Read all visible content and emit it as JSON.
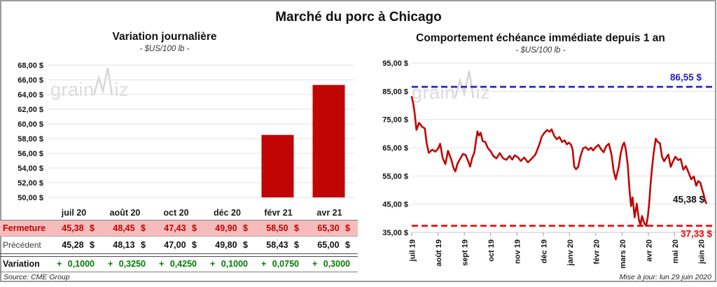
{
  "page_title": "Marché du porc à Chicago",
  "watermark": {
    "pre": "grain",
    "post": "iz"
  },
  "footer": {
    "source": "Source: CME Group",
    "updated": "Mise à jour: lun 29 juin 2020"
  },
  "colors": {
    "bar": "#c10505",
    "line": "#c10505",
    "high_dash": "#1e1ecb",
    "low_dash": "#fe0101",
    "grid": "#e2e2e2",
    "close_row_bg": "#f6bcbc",
    "close_text": "#c00000",
    "variation_green": "#007d00"
  },
  "left_chart": {
    "title": "Variation journalière",
    "subtitle": "- $US/100 lb -",
    "y_tick_labels": [
      "68,00 $",
      "66,00 $",
      "64,00 $",
      "62,00 $",
      "60,00 $",
      "58,00 $",
      "56,00 $",
      "54,00 $",
      "52,00 $",
      "50,00 $"
    ]
  },
  "table": {
    "columns": [
      "juil 20",
      "août 20",
      "oct 20",
      "déc 20",
      "févr 21",
      "avr 21"
    ],
    "rows": [
      {
        "label": "Fermeture",
        "style": "close",
        "values": [
          "45,38 $",
          "48,45 $",
          "47,43 $",
          "49,90 $",
          "58,50 $",
          "65,30 $"
        ]
      },
      {
        "label": "Précédent",
        "style": "previous",
        "values": [
          "45,28 $",
          "48,13 $",
          "47,00 $",
          "49,80 $",
          "58,43 $",
          "65,00 $"
        ]
      },
      {
        "label": "Variation",
        "style": "variation",
        "values": [
          "+ 0,1000",
          "+ 0,3250",
          "+ 0,4250",
          "+ 0,1000",
          "+ 0,0750",
          "+ 0,3000"
        ]
      }
    ]
  },
  "right_chart": {
    "title": "Comportement échéance immédiate depuis 1 an",
    "subtitle": "- $US/100 lb -",
    "y_tick_labels": [
      "95,00 $",
      "85,00 $",
      "75,00 $",
      "65,00 $",
      "55,00 $",
      "45,00 $",
      "35,00 $"
    ],
    "x_tick_labels": [
      "juil 19",
      "août 19",
      "sept 19",
      "oct 19",
      "nov 19",
      "déc 19",
      "janv 20",
      "févr 20",
      "mars 20",
      "avr 20",
      "mai 20",
      "juin 20"
    ],
    "high_label": "86,55 $",
    "low_label": "37,33 $",
    "last_label": "45,38 $"
  },
  "chart_data": [
    {
      "type": "bar",
      "title": "Variation journalière",
      "ylabel": "$US/100 lb",
      "categories": [
        "juil 20",
        "août 20",
        "oct 20",
        "déc 20",
        "févr 21",
        "avr 21"
      ],
      "values": [
        45.38,
        48.45,
        47.43,
        49.9,
        58.5,
        65.3
      ],
      "previous": [
        45.28,
        48.13,
        47.0,
        49.8,
        58.43,
        65.0
      ],
      "variation": [
        0.1,
        0.325,
        0.425,
        0.1,
        0.075,
        0.3
      ],
      "ylim": [
        50,
        68
      ],
      "ytick_step": 2,
      "grid": true,
      "note": "bars whose value is below the 50 $ axis minimum are not visible"
    },
    {
      "type": "line",
      "title": "Comportement échéance immédiate depuis 1 an",
      "ylabel": "$US/100 lb",
      "x_unit": "months elapsed since juil 2019 tick",
      "ylim": [
        35,
        95
      ],
      "ytick_step": 10,
      "grid": true,
      "high_reference": 86.55,
      "low_reference": 37.33,
      "last_value": 45.38,
      "points": [
        [
          0.0,
          83.0
        ],
        [
          0.05,
          81.0
        ],
        [
          0.1,
          78.0
        ],
        [
          0.18,
          71.3
        ],
        [
          0.28,
          73.8
        ],
        [
          0.4,
          72.4
        ],
        [
          0.5,
          71.8
        ],
        [
          0.57,
          66.5
        ],
        [
          0.65,
          63.2
        ],
        [
          0.78,
          64.3
        ],
        [
          0.9,
          63.6
        ],
        [
          1.0,
          64.6
        ],
        [
          1.08,
          66.4
        ],
        [
          1.18,
          61.3
        ],
        [
          1.28,
          59.2
        ],
        [
          1.38,
          63.9
        ],
        [
          1.5,
          60.9
        ],
        [
          1.6,
          57.6
        ],
        [
          1.66,
          56.6
        ],
        [
          1.74,
          59.3
        ],
        [
          1.85,
          61.2
        ],
        [
          1.95,
          62.8
        ],
        [
          2.05,
          62.4
        ],
        [
          2.15,
          60.2
        ],
        [
          2.22,
          58.3
        ],
        [
          2.3,
          61.4
        ],
        [
          2.38,
          63.3
        ],
        [
          2.44,
          67.0
        ],
        [
          2.5,
          70.8
        ],
        [
          2.56,
          69.3
        ],
        [
          2.62,
          70.3
        ],
        [
          2.7,
          67.3
        ],
        [
          2.8,
          67.0
        ],
        [
          2.9,
          64.8
        ],
        [
          3.0,
          63.8
        ],
        [
          3.1,
          62.1
        ],
        [
          3.22,
          61.2
        ],
        [
          3.35,
          63.1
        ],
        [
          3.48,
          61.2
        ],
        [
          3.6,
          60.7
        ],
        [
          3.72,
          62.1
        ],
        [
          3.82,
          60.8
        ],
        [
          3.92,
          62.3
        ],
        [
          4.04,
          61.6
        ],
        [
          4.15,
          60.3
        ],
        [
          4.28,
          61.5
        ],
        [
          4.42,
          59.8
        ],
        [
          4.55,
          61.0
        ],
        [
          4.7,
          62.5
        ],
        [
          4.85,
          66.0
        ],
        [
          4.95,
          69.0
        ],
        [
          5.05,
          70.3
        ],
        [
          5.15,
          71.3
        ],
        [
          5.25,
          70.6
        ],
        [
          5.32,
          71.5
        ],
        [
          5.42,
          69.2
        ],
        [
          5.52,
          68.0
        ],
        [
          5.62,
          68.8
        ],
        [
          5.72,
          67.0
        ],
        [
          5.82,
          67.6
        ],
        [
          5.9,
          66.2
        ],
        [
          5.98,
          66.8
        ],
        [
          6.06,
          66.0
        ],
        [
          6.12,
          64.3
        ],
        [
          6.18,
          58.3
        ],
        [
          6.25,
          57.4
        ],
        [
          6.33,
          58.2
        ],
        [
          6.42,
          62.0
        ],
        [
          6.52,
          64.8
        ],
        [
          6.62,
          65.2
        ],
        [
          6.72,
          64.2
        ],
        [
          6.82,
          65.0
        ],
        [
          6.9,
          64.0
        ],
        [
          7.0,
          65.2
        ],
        [
          7.1,
          66.0
        ],
        [
          7.2,
          64.5
        ],
        [
          7.3,
          63.4
        ],
        [
          7.4,
          65.6
        ],
        [
          7.5,
          66.4
        ],
        [
          7.6,
          62.5
        ],
        [
          7.68,
          56.8
        ],
        [
          7.76,
          53.8
        ],
        [
          7.88,
          58.5
        ],
        [
          7.95,
          63.0
        ],
        [
          8.02,
          65.8
        ],
        [
          8.08,
          66.8
        ],
        [
          8.14,
          64.5
        ],
        [
          8.22,
          58.5
        ],
        [
          8.28,
          50.5
        ],
        [
          8.34,
          44.3
        ],
        [
          8.4,
          47.4
        ],
        [
          8.48,
          40.3
        ],
        [
          8.56,
          45.2
        ],
        [
          8.64,
          39.5
        ],
        [
          8.7,
          37.6
        ],
        [
          8.76,
          40.8
        ],
        [
          8.84,
          38.4
        ],
        [
          8.92,
          37.3
        ],
        [
          8.98,
          40.5
        ],
        [
          9.03,
          45.3
        ],
        [
          9.08,
          51.6
        ],
        [
          9.14,
          57.8
        ],
        [
          9.2,
          63.0
        ],
        [
          9.28,
          68.2
        ],
        [
          9.36,
          67.0
        ],
        [
          9.44,
          66.6
        ],
        [
          9.52,
          61.8
        ],
        [
          9.6,
          60.2
        ],
        [
          9.68,
          61.5
        ],
        [
          9.76,
          62.6
        ],
        [
          9.85,
          58.2
        ],
        [
          9.93,
          60.0
        ],
        [
          10.03,
          61.8
        ],
        [
          10.13,
          60.6
        ],
        [
          10.23,
          61.0
        ],
        [
          10.33,
          57.2
        ],
        [
          10.43,
          58.5
        ],
        [
          10.53,
          56.2
        ],
        [
          10.63,
          53.8
        ],
        [
          10.73,
          54.8
        ],
        [
          10.82,
          51.5
        ],
        [
          10.9,
          53.2
        ],
        [
          10.98,
          52.6
        ],
        [
          11.04,
          50.4
        ],
        [
          11.1,
          48.6
        ],
        [
          11.15,
          46.5
        ],
        [
          11.2,
          45.38
        ]
      ]
    }
  ]
}
